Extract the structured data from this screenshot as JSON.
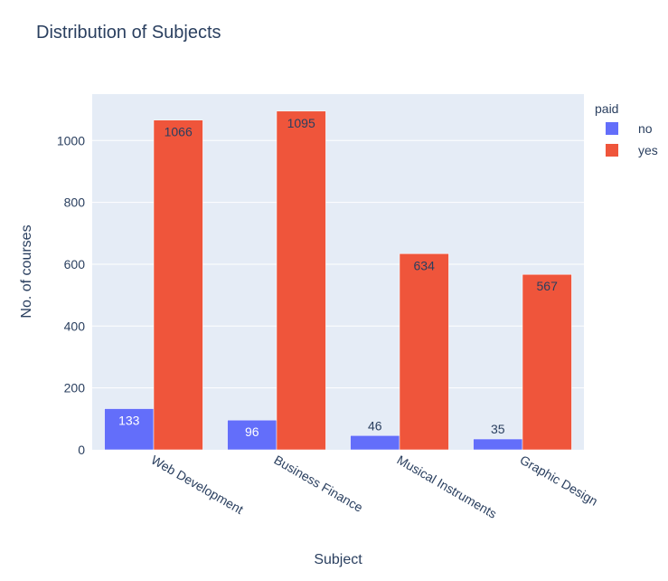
{
  "chart_data": {
    "type": "bar",
    "title": "Distribution of Subjects",
    "xlabel": "Subject",
    "ylabel": "No. of courses",
    "categories": [
      "Web Development",
      "Business Finance",
      "Musical Instruments",
      "Graphic Design"
    ],
    "series": [
      {
        "name": "no",
        "values": [
          133,
          96,
          46,
          35
        ],
        "color": "#636efa"
      },
      {
        "name": "yes",
        "values": [
          1066,
          1095,
          634,
          567
        ],
        "color": "#ef553b"
      }
    ],
    "ylim": [
      0,
      1150
    ],
    "yticks": [
      0,
      200,
      400,
      600,
      800,
      1000
    ],
    "grid": true,
    "legend": {
      "title": "paid",
      "position": "top-right"
    },
    "plot_background": "#e5ecf6"
  }
}
